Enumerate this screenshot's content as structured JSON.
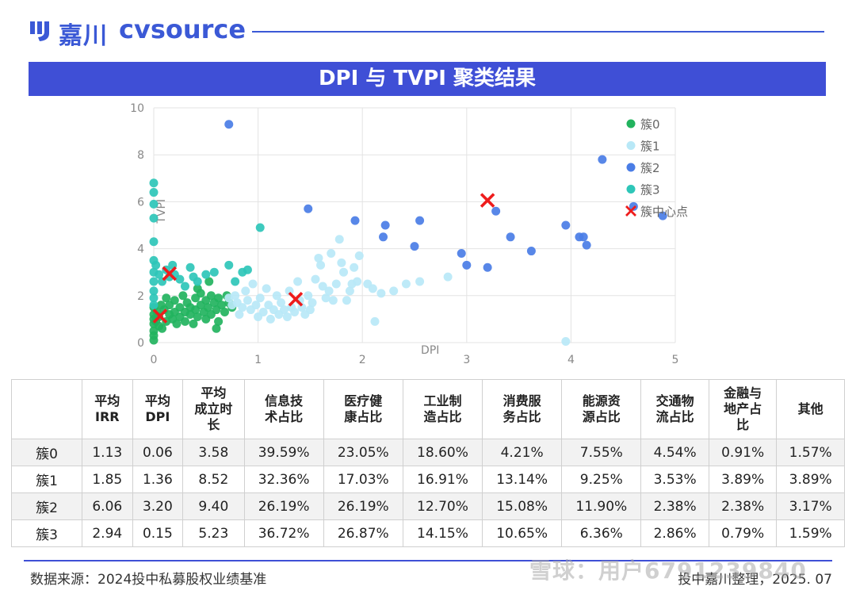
{
  "brand": {
    "name_cn": "嘉川",
    "name_en": "cvsource",
    "accent": "#3b59d6"
  },
  "banner": {
    "title": "DPI 与 TVPI 聚类结果"
  },
  "chart_data": {
    "type": "scatter",
    "title": "DPI 与 TVPI 聚类结果",
    "xlabel": "DPI",
    "ylabel": "TVPI",
    "xlim": [
      0,
      5
    ],
    "ylim": [
      0,
      10
    ],
    "xticks": [
      0,
      1,
      2,
      3,
      4,
      5
    ],
    "yticks": [
      0,
      2,
      4,
      6,
      8,
      10
    ],
    "grid": true,
    "legend_position": "top-right",
    "series": [
      {
        "name": "簇0",
        "color": "#22b35e",
        "marker": "circle",
        "points": [
          [
            0,
            0.1
          ],
          [
            0,
            0.3
          ],
          [
            0,
            0.5
          ],
          [
            0,
            0.8
          ],
          [
            0,
            1.0
          ],
          [
            0,
            1.2
          ],
          [
            0,
            1.5
          ],
          [
            0.02,
            0.9
          ],
          [
            0.03,
            1.3
          ],
          [
            0.05,
            0.7
          ],
          [
            0.05,
            1.1
          ],
          [
            0.07,
            1.6
          ],
          [
            0.08,
            0.6
          ],
          [
            0.1,
            1.4
          ],
          [
            0.12,
            1.9
          ],
          [
            0.12,
            0.9
          ],
          [
            0.15,
            1.2
          ],
          [
            0.15,
            1.6
          ],
          [
            0.18,
            1.0
          ],
          [
            0.2,
            1.3
          ],
          [
            0.2,
            1.8
          ],
          [
            0.22,
            0.8
          ],
          [
            0.25,
            1.5
          ],
          [
            0.25,
            1.1
          ],
          [
            0.28,
            2.0
          ],
          [
            0.3,
            1.3
          ],
          [
            0.3,
            0.9
          ],
          [
            0.32,
            1.7
          ],
          [
            0.35,
            1.2
          ],
          [
            0.35,
            1.5
          ],
          [
            0.38,
            0.8
          ],
          [
            0.4,
            1.9
          ],
          [
            0.4,
            1.4
          ],
          [
            0.42,
            1.1
          ],
          [
            0.45,
            1.6
          ],
          [
            0.45,
            2.1
          ],
          [
            0.48,
            1.3
          ],
          [
            0.5,
            1.0
          ],
          [
            0.5,
            1.8
          ],
          [
            0.52,
            1.5
          ],
          [
            0.55,
            1.2
          ],
          [
            0.55,
            2.0
          ],
          [
            0.58,
            1.7
          ],
          [
            0.6,
            1.4
          ],
          [
            0.62,
            0.9
          ],
          [
            0.62,
            1.9
          ],
          [
            0.65,
            1.6
          ],
          [
            0.68,
            1.3
          ],
          [
            0.7,
            2.0
          ],
          [
            0.72,
            1.7
          ],
          [
            0.75,
            1.5
          ],
          [
            0.6,
            0.6
          ],
          [
            0.42,
            2.3
          ],
          [
            0.53,
            2.6
          ]
        ]
      },
      {
        "name": "簇1",
        "color": "#b8e8f7",
        "marker": "circle",
        "points": [
          [
            0.72,
            1.9
          ],
          [
            0.75,
            1.6
          ],
          [
            0.78,
            2.0
          ],
          [
            0.8,
            1.7
          ],
          [
            0.82,
            1.2
          ],
          [
            0.85,
            1.5
          ],
          [
            0.88,
            2.2
          ],
          [
            0.9,
            1.8
          ],
          [
            0.93,
            1.4
          ],
          [
            0.95,
            2.5
          ],
          [
            0.98,
            1.6
          ],
          [
            1.0,
            1.1
          ],
          [
            1.02,
            1.9
          ],
          [
            1.05,
            1.3
          ],
          [
            1.08,
            2.3
          ],
          [
            1.1,
            1.6
          ],
          [
            1.12,
            1.0
          ],
          [
            1.15,
            1.4
          ],
          [
            1.18,
            2.0
          ],
          [
            1.2,
            1.2
          ],
          [
            1.22,
            1.7
          ],
          [
            1.25,
            1.4
          ],
          [
            1.28,
            1.1
          ],
          [
            1.3,
            2.2
          ],
          [
            1.32,
            1.5
          ],
          [
            1.35,
            1.3
          ],
          [
            1.38,
            2.6
          ],
          [
            1.4,
            1.8
          ],
          [
            1.42,
            1.5
          ],
          [
            1.45,
            1.2
          ],
          [
            1.48,
            2.0
          ],
          [
            1.5,
            1.4
          ],
          [
            1.52,
            1.7
          ],
          [
            1.55,
            2.7
          ],
          [
            1.58,
            3.6
          ],
          [
            1.6,
            3.3
          ],
          [
            1.62,
            2.4
          ],
          [
            1.65,
            1.9
          ],
          [
            1.68,
            2.2
          ],
          [
            1.7,
            3.8
          ],
          [
            1.72,
            1.8
          ],
          [
            1.75,
            2.5
          ],
          [
            1.78,
            4.4
          ],
          [
            1.8,
            3.4
          ],
          [
            1.82,
            3.0
          ],
          [
            1.85,
            1.8
          ],
          [
            1.88,
            2.2
          ],
          [
            1.9,
            2.5
          ],
          [
            1.92,
            3.2
          ],
          [
            1.95,
            2.6
          ],
          [
            1.97,
            3.7
          ],
          [
            2.05,
            2.5
          ],
          [
            2.1,
            2.3
          ],
          [
            2.12,
            0.9
          ],
          [
            2.18,
            2.1
          ],
          [
            2.3,
            2.2
          ],
          [
            2.42,
            2.5
          ],
          [
            2.55,
            2.6
          ],
          [
            2.82,
            2.8
          ],
          [
            3.95,
            0.05
          ]
        ]
      },
      {
        "name": "簇2",
        "color": "#4a7de6",
        "marker": "circle",
        "points": [
          [
            0.72,
            9.3
          ],
          [
            1.48,
            5.7
          ],
          [
            1.93,
            5.2
          ],
          [
            2.2,
            4.5
          ],
          [
            2.22,
            5.0
          ],
          [
            2.5,
            4.1
          ],
          [
            2.55,
            5.2
          ],
          [
            2.95,
            3.8
          ],
          [
            3.0,
            3.3
          ],
          [
            3.2,
            3.2
          ],
          [
            3.28,
            5.6
          ],
          [
            3.42,
            4.5
          ],
          [
            3.62,
            3.9
          ],
          [
            3.95,
            5.0
          ],
          [
            4.08,
            4.5
          ],
          [
            4.12,
            4.5
          ],
          [
            4.15,
            4.15
          ],
          [
            4.3,
            7.8
          ],
          [
            4.6,
            5.8
          ],
          [
            4.88,
            5.4
          ]
        ]
      },
      {
        "name": "簇3",
        "color": "#2ec6b8",
        "marker": "circle",
        "points": [
          [
            0,
            6.8
          ],
          [
            0,
            6.4
          ],
          [
            0,
            5.9
          ],
          [
            0,
            5.3
          ],
          [
            0,
            4.3
          ],
          [
            0,
            3.5
          ],
          [
            0,
            3.0
          ],
          [
            0,
            2.6
          ],
          [
            0,
            2.2
          ],
          [
            0,
            1.9
          ],
          [
            0,
            1.6
          ],
          [
            0.02,
            3.3
          ],
          [
            0.05,
            2.9
          ],
          [
            0.08,
            2.6
          ],
          [
            0.12,
            3.1
          ],
          [
            0.15,
            2.8
          ],
          [
            0.18,
            3.3
          ],
          [
            0.2,
            2.9
          ],
          [
            0.25,
            2.7
          ],
          [
            0.3,
            2.4
          ],
          [
            0.35,
            3.2
          ],
          [
            0.38,
            2.8
          ],
          [
            0.42,
            2.6
          ],
          [
            0.5,
            2.9
          ],
          [
            0.58,
            3.0
          ],
          [
            0.72,
            3.3
          ],
          [
            0.78,
            2.6
          ],
          [
            0.85,
            3.0
          ],
          [
            0.9,
            3.1
          ],
          [
            1.02,
            4.9
          ]
        ]
      },
      {
        "name": "簇中心点",
        "color": "#ee1c1c",
        "marker": "x",
        "points": [
          [
            0.06,
            1.13
          ],
          [
            0.15,
            2.94
          ],
          [
            1.36,
            1.85
          ],
          [
            3.2,
            6.06
          ]
        ]
      }
    ]
  },
  "table": {
    "headers": [
      "",
      "平均\nIRR",
      "平均\nDPI",
      "平均\n成立时\n长",
      "信息技\n术占比",
      "医疗健\n康占比",
      "工业制\n造占比",
      "消费服\n务占比",
      "能源资\n源占比",
      "交通物\n流占比",
      "金融与\n地产占\n比",
      "其他"
    ],
    "rows": [
      [
        "簇0",
        "1.13",
        "0.06",
        "3.58",
        "39.59%",
        "23.05%",
        "18.60%",
        "4.21%",
        "7.55%",
        "4.54%",
        "0.91%",
        "1.57%"
      ],
      [
        "簇1",
        "1.85",
        "1.36",
        "8.52",
        "32.36%",
        "17.03%",
        "16.91%",
        "13.14%",
        "9.25%",
        "3.53%",
        "3.89%",
        "3.89%"
      ],
      [
        "簇2",
        "6.06",
        "3.20",
        "9.40",
        "26.19%",
        "26.19%",
        "12.70%",
        "15.08%",
        "11.90%",
        "2.38%",
        "2.38%",
        "3.17%"
      ],
      [
        "簇3",
        "2.94",
        "0.15",
        "5.23",
        "36.72%",
        "26.87%",
        "14.15%",
        "10.65%",
        "6.36%",
        "2.86%",
        "0.79%",
        "1.59%"
      ]
    ]
  },
  "footer": {
    "source": "数据来源：2024投中私募股权业绩基准",
    "credit": "投中嘉川整理，2025. 07",
    "watermark": "雪球：用户6791239840"
  }
}
